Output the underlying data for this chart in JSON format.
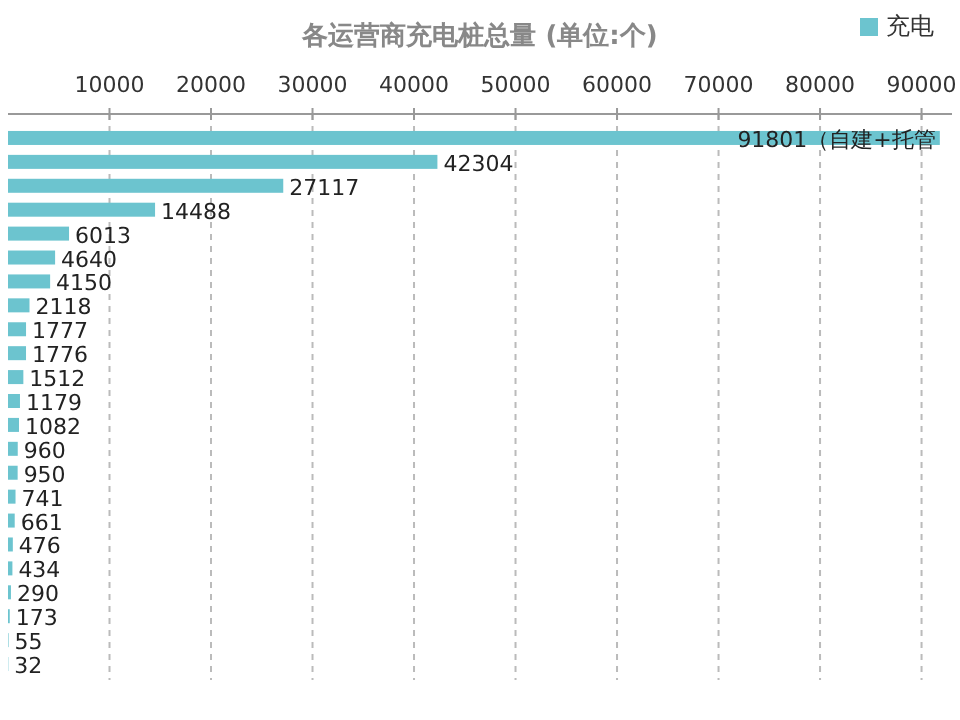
{
  "chart_data": {
    "type": "bar",
    "orientation": "horizontal",
    "title": "各运营商充电桩总量 (单位:个)",
    "categories": [
      null,
      null,
      null,
      null,
      null,
      null,
      null,
      null,
      null,
      null,
      null,
      null,
      null,
      null,
      null,
      null,
      null,
      null,
      null,
      null,
      null,
      null,
      null
    ],
    "series": [
      {
        "name": "充电",
        "color": "#6cc4cf",
        "values": [
          91801,
          42304,
          27117,
          14488,
          6013,
          4640,
          4150,
          2118,
          1777,
          1776,
          1512,
          1179,
          1082,
          960,
          950,
          741,
          661,
          476,
          434,
          290,
          173,
          55,
          32
        ],
        "value_labels": [
          "91801（自建+托管",
          "42304",
          "27117",
          "14488",
          "6013",
          "4640",
          "4150",
          "2118",
          "1777",
          "1776",
          "1512",
          "1179",
          "1082",
          "960",
          "950",
          "741",
          "661",
          "476",
          "434",
          "290",
          "173",
          "55",
          "32"
        ]
      }
    ],
    "xlim": [
      0,
      93000
    ],
    "xticks": [
      10000,
      20000,
      30000,
      40000,
      50000,
      60000,
      70000,
      80000,
      90000
    ],
    "grid": "x",
    "legend": "top right"
  }
}
